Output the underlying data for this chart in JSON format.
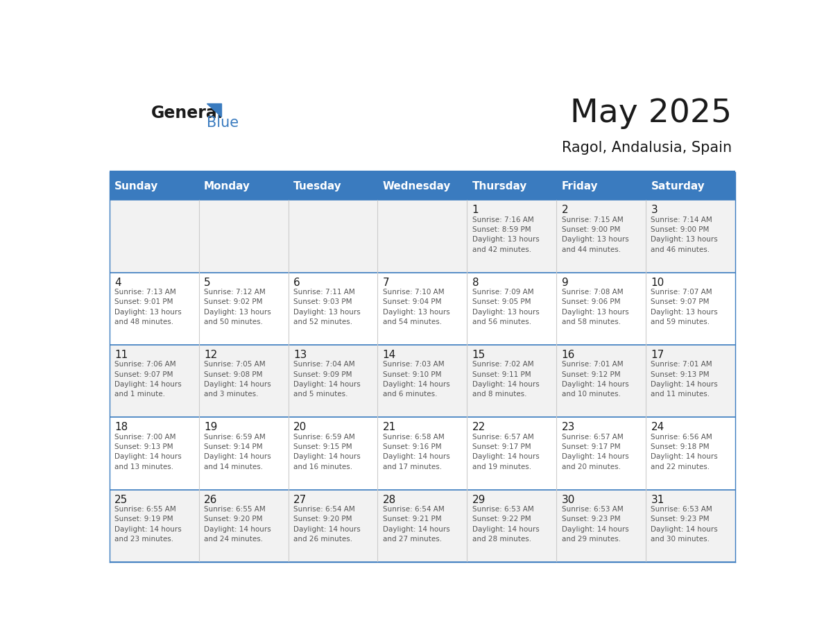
{
  "title": "May 2025",
  "subtitle": "Ragol, Andalusia, Spain",
  "header_bg": "#3a7bbf",
  "header_text_color": "#ffffff",
  "day_names": [
    "Sunday",
    "Monday",
    "Tuesday",
    "Wednesday",
    "Thursday",
    "Friday",
    "Saturday"
  ],
  "row_bg_even": "#f2f2f2",
  "row_bg_odd": "#ffffff",
  "cell_text_color": "#333333",
  "day_num_color": "#1a1a1a",
  "grid_color": "#3a7bbf",
  "inner_grid_color": "#cccccc",
  "calendar": [
    [
      {
        "day": "",
        "info": ""
      },
      {
        "day": "",
        "info": ""
      },
      {
        "day": "",
        "info": ""
      },
      {
        "day": "",
        "info": ""
      },
      {
        "day": "1",
        "info": "Sunrise: 7:16 AM\nSunset: 8:59 PM\nDaylight: 13 hours\nand 42 minutes."
      },
      {
        "day": "2",
        "info": "Sunrise: 7:15 AM\nSunset: 9:00 PM\nDaylight: 13 hours\nand 44 minutes."
      },
      {
        "day": "3",
        "info": "Sunrise: 7:14 AM\nSunset: 9:00 PM\nDaylight: 13 hours\nand 46 minutes."
      }
    ],
    [
      {
        "day": "4",
        "info": "Sunrise: 7:13 AM\nSunset: 9:01 PM\nDaylight: 13 hours\nand 48 minutes."
      },
      {
        "day": "5",
        "info": "Sunrise: 7:12 AM\nSunset: 9:02 PM\nDaylight: 13 hours\nand 50 minutes."
      },
      {
        "day": "6",
        "info": "Sunrise: 7:11 AM\nSunset: 9:03 PM\nDaylight: 13 hours\nand 52 minutes."
      },
      {
        "day": "7",
        "info": "Sunrise: 7:10 AM\nSunset: 9:04 PM\nDaylight: 13 hours\nand 54 minutes."
      },
      {
        "day": "8",
        "info": "Sunrise: 7:09 AM\nSunset: 9:05 PM\nDaylight: 13 hours\nand 56 minutes."
      },
      {
        "day": "9",
        "info": "Sunrise: 7:08 AM\nSunset: 9:06 PM\nDaylight: 13 hours\nand 58 minutes."
      },
      {
        "day": "10",
        "info": "Sunrise: 7:07 AM\nSunset: 9:07 PM\nDaylight: 13 hours\nand 59 minutes."
      }
    ],
    [
      {
        "day": "11",
        "info": "Sunrise: 7:06 AM\nSunset: 9:07 PM\nDaylight: 14 hours\nand 1 minute."
      },
      {
        "day": "12",
        "info": "Sunrise: 7:05 AM\nSunset: 9:08 PM\nDaylight: 14 hours\nand 3 minutes."
      },
      {
        "day": "13",
        "info": "Sunrise: 7:04 AM\nSunset: 9:09 PM\nDaylight: 14 hours\nand 5 minutes."
      },
      {
        "day": "14",
        "info": "Sunrise: 7:03 AM\nSunset: 9:10 PM\nDaylight: 14 hours\nand 6 minutes."
      },
      {
        "day": "15",
        "info": "Sunrise: 7:02 AM\nSunset: 9:11 PM\nDaylight: 14 hours\nand 8 minutes."
      },
      {
        "day": "16",
        "info": "Sunrise: 7:01 AM\nSunset: 9:12 PM\nDaylight: 14 hours\nand 10 minutes."
      },
      {
        "day": "17",
        "info": "Sunrise: 7:01 AM\nSunset: 9:13 PM\nDaylight: 14 hours\nand 11 minutes."
      }
    ],
    [
      {
        "day": "18",
        "info": "Sunrise: 7:00 AM\nSunset: 9:13 PM\nDaylight: 14 hours\nand 13 minutes."
      },
      {
        "day": "19",
        "info": "Sunrise: 6:59 AM\nSunset: 9:14 PM\nDaylight: 14 hours\nand 14 minutes."
      },
      {
        "day": "20",
        "info": "Sunrise: 6:59 AM\nSunset: 9:15 PM\nDaylight: 14 hours\nand 16 minutes."
      },
      {
        "day": "21",
        "info": "Sunrise: 6:58 AM\nSunset: 9:16 PM\nDaylight: 14 hours\nand 17 minutes."
      },
      {
        "day": "22",
        "info": "Sunrise: 6:57 AM\nSunset: 9:17 PM\nDaylight: 14 hours\nand 19 minutes."
      },
      {
        "day": "23",
        "info": "Sunrise: 6:57 AM\nSunset: 9:17 PM\nDaylight: 14 hours\nand 20 minutes."
      },
      {
        "day": "24",
        "info": "Sunrise: 6:56 AM\nSunset: 9:18 PM\nDaylight: 14 hours\nand 22 minutes."
      }
    ],
    [
      {
        "day": "25",
        "info": "Sunrise: 6:55 AM\nSunset: 9:19 PM\nDaylight: 14 hours\nand 23 minutes."
      },
      {
        "day": "26",
        "info": "Sunrise: 6:55 AM\nSunset: 9:20 PM\nDaylight: 14 hours\nand 24 minutes."
      },
      {
        "day": "27",
        "info": "Sunrise: 6:54 AM\nSunset: 9:20 PM\nDaylight: 14 hours\nand 26 minutes."
      },
      {
        "day": "28",
        "info": "Sunrise: 6:54 AM\nSunset: 9:21 PM\nDaylight: 14 hours\nand 27 minutes."
      },
      {
        "day": "29",
        "info": "Sunrise: 6:53 AM\nSunset: 9:22 PM\nDaylight: 14 hours\nand 28 minutes."
      },
      {
        "day": "30",
        "info": "Sunrise: 6:53 AM\nSunset: 9:23 PM\nDaylight: 14 hours\nand 29 minutes."
      },
      {
        "day": "31",
        "info": "Sunrise: 6:53 AM\nSunset: 9:23 PM\nDaylight: 14 hours\nand 30 minutes."
      }
    ]
  ]
}
